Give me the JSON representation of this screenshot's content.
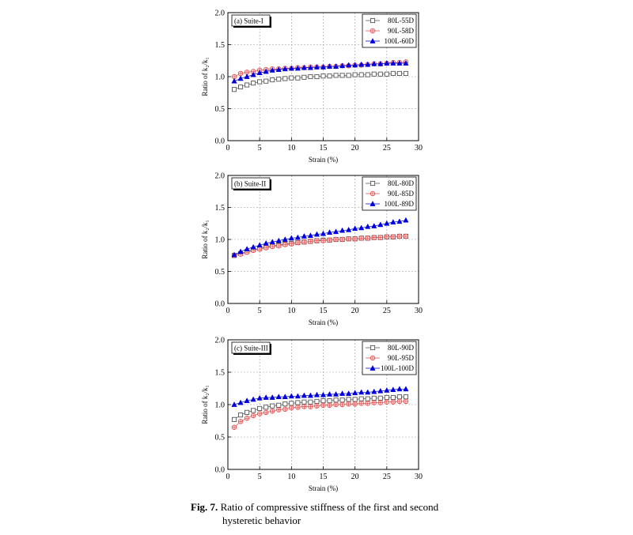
{
  "caption": {
    "label": "Fig. 7.",
    "line1": "Ratio of compressive stiffness of the first and second",
    "line2": "hysteretic behavior"
  },
  "chart_data": [
    {
      "type": "line",
      "title": "(a) Suite-I",
      "xlabel": "Strain (%)",
      "ylabel": "Ratio of k₂/k₁",
      "xlim": [
        0,
        30
      ],
      "ylim": [
        0,
        2
      ],
      "xticks": [
        0,
        5,
        10,
        15,
        20,
        25,
        30
      ],
      "yticks": [
        0.0,
        0.5,
        1.0,
        1.5,
        2.0
      ],
      "grid": true,
      "legend_position": "top-right",
      "x": [
        1,
        2,
        3,
        4,
        5,
        6,
        7,
        8,
        9,
        10,
        11,
        12,
        13,
        14,
        15,
        16,
        17,
        18,
        19,
        20,
        21,
        22,
        23,
        24,
        25,
        26,
        27,
        28
      ],
      "series": [
        {
          "name": "80L-55D",
          "marker": "square",
          "color": "#555555",
          "values": [
            0.8,
            0.84,
            0.87,
            0.9,
            0.92,
            0.93,
            0.95,
            0.96,
            0.97,
            0.98,
            0.98,
            0.99,
            1.0,
            1.0,
            1.01,
            1.01,
            1.02,
            1.02,
            1.02,
            1.03,
            1.03,
            1.03,
            1.04,
            1.04,
            1.04,
            1.05,
            1.05,
            1.05
          ]
        },
        {
          "name": "90L-58D",
          "marker": "circle-plus",
          "color": "#e05050",
          "values": [
            1.0,
            1.05,
            1.07,
            1.08,
            1.1,
            1.11,
            1.12,
            1.12,
            1.13,
            1.13,
            1.14,
            1.14,
            1.15,
            1.15,
            1.15,
            1.16,
            1.16,
            1.17,
            1.17,
            1.18,
            1.18,
            1.19,
            1.2,
            1.2,
            1.21,
            1.22,
            1.22,
            1.23
          ]
        },
        {
          "name": "100L-60D",
          "marker": "triangle",
          "color": "#0000dd",
          "values": [
            0.93,
            0.97,
            1.0,
            1.03,
            1.06,
            1.08,
            1.1,
            1.11,
            1.12,
            1.13,
            1.13,
            1.14,
            1.14,
            1.15,
            1.15,
            1.16,
            1.16,
            1.17,
            1.18,
            1.18,
            1.19,
            1.19,
            1.2,
            1.2,
            1.21,
            1.21,
            1.21,
            1.21
          ]
        }
      ]
    },
    {
      "type": "line",
      "title": "(b) Suite-II",
      "xlabel": "Strain (%)",
      "ylabel": "Ratio of k₂/k₁",
      "xlim": [
        0,
        30
      ],
      "ylim": [
        0,
        2
      ],
      "xticks": [
        0,
        5,
        10,
        15,
        20,
        25,
        30
      ],
      "yticks": [
        0.0,
        0.5,
        1.0,
        1.5,
        2.0
      ],
      "grid": true,
      "legend_position": "top-right",
      "x": [
        1,
        2,
        3,
        4,
        5,
        6,
        7,
        8,
        9,
        10,
        11,
        12,
        13,
        14,
        15,
        16,
        17,
        18,
        19,
        20,
        21,
        22,
        23,
        24,
        25,
        26,
        27,
        28
      ],
      "series": [
        {
          "name": "80L-80D",
          "marker": "square",
          "color": "#555555",
          "values": [
            0.75,
            0.78,
            0.81,
            0.84,
            0.86,
            0.88,
            0.9,
            0.91,
            0.93,
            0.94,
            0.95,
            0.96,
            0.97,
            0.98,
            0.99,
            0.99,
            1.0,
            1.0,
            1.01,
            1.01,
            1.02,
            1.02,
            1.03,
            1.03,
            1.04,
            1.04,
            1.05,
            1.05
          ]
        },
        {
          "name": "90L-85D",
          "marker": "circle-plus",
          "color": "#e05050",
          "values": [
            0.75,
            0.77,
            0.8,
            0.83,
            0.85,
            0.87,
            0.89,
            0.9,
            0.92,
            0.93,
            0.95,
            0.96,
            0.97,
            0.98,
            0.98,
            0.99,
            1.0,
            1.0,
            1.01,
            1.01,
            1.02,
            1.02,
            1.03,
            1.03,
            1.04,
            1.04,
            1.05,
            1.05
          ]
        },
        {
          "name": "100L-89D",
          "marker": "triangle",
          "color": "#0000dd",
          "values": [
            0.76,
            0.81,
            0.85,
            0.88,
            0.91,
            0.94,
            0.96,
            0.98,
            1.0,
            1.02,
            1.03,
            1.05,
            1.06,
            1.08,
            1.09,
            1.11,
            1.12,
            1.14,
            1.15,
            1.17,
            1.18,
            1.2,
            1.21,
            1.23,
            1.25,
            1.27,
            1.28,
            1.3
          ]
        }
      ]
    },
    {
      "type": "line",
      "title": "(c) Suite-III",
      "xlabel": "Strain (%)",
      "ylabel": "Ratio of k₂/k₁",
      "xlim": [
        0,
        30
      ],
      "ylim": [
        0,
        2
      ],
      "xticks": [
        0,
        5,
        10,
        15,
        20,
        25,
        30
      ],
      "yticks": [
        0.0,
        0.5,
        1.0,
        1.5,
        2.0
      ],
      "grid": true,
      "legend_position": "top-right",
      "x": [
        1,
        2,
        3,
        4,
        5,
        6,
        7,
        8,
        9,
        10,
        11,
        12,
        13,
        14,
        15,
        16,
        17,
        18,
        19,
        20,
        21,
        22,
        23,
        24,
        25,
        26,
        27,
        28
      ],
      "series": [
        {
          "name": "80L-90D",
          "marker": "square",
          "color": "#555555",
          "values": [
            0.77,
            0.84,
            0.88,
            0.91,
            0.94,
            0.96,
            0.98,
            0.99,
            1.01,
            1.02,
            1.03,
            1.04,
            1.04,
            1.05,
            1.06,
            1.06,
            1.07,
            1.07,
            1.08,
            1.08,
            1.09,
            1.09,
            1.1,
            1.1,
            1.11,
            1.11,
            1.12,
            1.12
          ]
        },
        {
          "name": "90L-95D",
          "marker": "circle-plus",
          "color": "#e05050",
          "values": [
            0.65,
            0.74,
            0.79,
            0.83,
            0.86,
            0.88,
            0.9,
            0.92,
            0.93,
            0.95,
            0.96,
            0.97,
            0.97,
            0.98,
            0.99,
            0.99,
            1.0,
            1.0,
            1.01,
            1.01,
            1.02,
            1.02,
            1.03,
            1.03,
            1.04,
            1.04,
            1.05,
            1.05
          ]
        },
        {
          "name": "100L-100D",
          "marker": "triangle",
          "color": "#0000dd",
          "values": [
            1.0,
            1.03,
            1.06,
            1.08,
            1.1,
            1.11,
            1.11,
            1.12,
            1.12,
            1.13,
            1.13,
            1.14,
            1.14,
            1.15,
            1.15,
            1.16,
            1.16,
            1.17,
            1.17,
            1.18,
            1.19,
            1.19,
            1.2,
            1.21,
            1.22,
            1.23,
            1.24,
            1.24
          ]
        }
      ]
    }
  ]
}
